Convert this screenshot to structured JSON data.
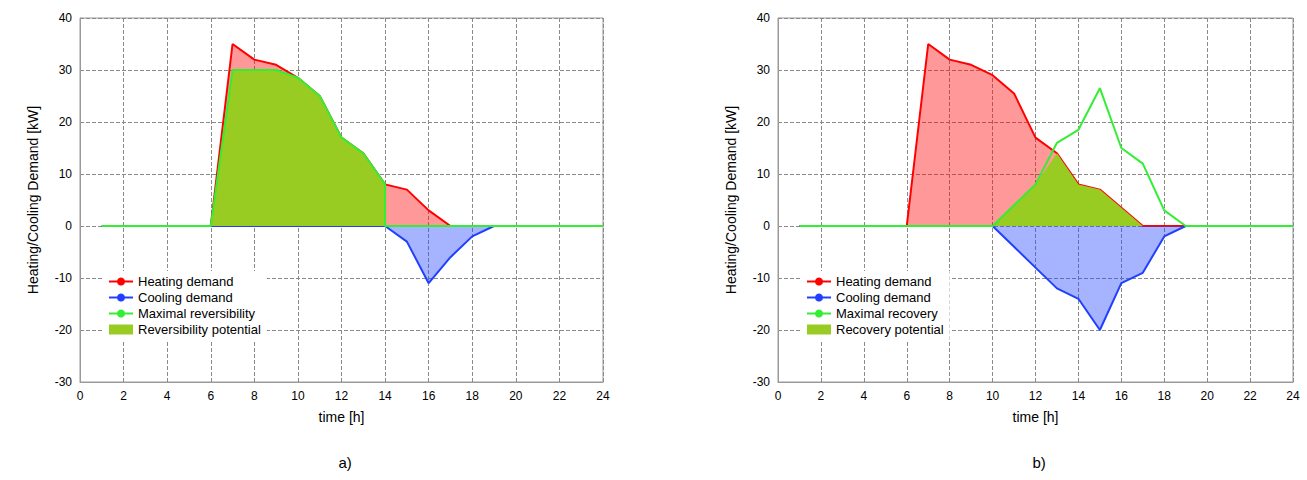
{
  "chart_data": [
    {
      "type": "line",
      "title": "a)",
      "x_label": "time [h]",
      "y_label": "Heating/Cooling Demand [kW]",
      "x": [
        1,
        2,
        3,
        4,
        5,
        6,
        7,
        8,
        9,
        10,
        11,
        12,
        13,
        14,
        14,
        15,
        16,
        17,
        18,
        19,
        20,
        21,
        22,
        23,
        24
      ],
      "series": [
        {
          "name": "Heating demand",
          "type": "area",
          "color": "#ff0000",
          "values": [
            0,
            0,
            0,
            0,
            0,
            0,
            35,
            32,
            31,
            28.5,
            25,
            17,
            14,
            8,
            8,
            7,
            3,
            0,
            0,
            0,
            0,
            0,
            0,
            0,
            0
          ]
        },
        {
          "name": "Cooling demand",
          "type": "area",
          "color": "#2040ff",
          "values": [
            0,
            0,
            0,
            0,
            0,
            0,
            0,
            0,
            0,
            0,
            0,
            0,
            0,
            0,
            0,
            -3,
            -11,
            -6,
            -2,
            0,
            0,
            0,
            0,
            0,
            0
          ]
        },
        {
          "name": "Reversibility potential",
          "type": "area",
          "line_style": "none",
          "color": "#99cc22",
          "values": [
            0,
            0,
            0,
            0,
            0,
            0,
            30,
            30,
            30,
            28.5,
            25,
            17,
            14,
            8,
            0,
            0,
            0,
            0,
            0,
            0,
            0,
            0,
            0,
            0,
            0
          ]
        },
        {
          "name": "Maximal reversibility",
          "type": "line",
          "color": "#33ee33",
          "values": [
            0,
            0,
            0,
            0,
            0,
            0,
            30,
            30,
            30,
            28.5,
            25,
            17,
            14,
            8,
            0,
            0,
            0,
            0,
            0,
            0,
            0,
            0,
            0,
            0,
            0
          ]
        }
      ],
      "legend_order": [
        "Heating demand",
        "Cooling demand",
        "Maximal reversibility",
        "Reversibility potential"
      ],
      "xlim": [
        0,
        24
      ],
      "xticks": [
        0,
        2,
        4,
        6,
        8,
        10,
        12,
        14,
        16,
        18,
        20,
        22,
        24
      ],
      "ylim": [
        -30,
        40
      ],
      "yticks": [
        -30,
        -20,
        -10,
        0,
        10,
        20,
        30,
        40
      ],
      "grid": true,
      "legend": "lower left"
    },
    {
      "type": "line",
      "title": "b)",
      "x_label": "time [h]",
      "y_label": "Heating/Cooling Demand [kW]",
      "x": [
        1,
        2,
        3,
        4,
        5,
        6,
        7,
        8,
        9,
        10,
        11,
        12,
        13,
        14,
        15,
        16,
        17,
        18,
        19,
        20,
        21,
        22,
        23,
        24
      ],
      "series": [
        {
          "name": "Heating demand",
          "type": "area",
          "color": "#ff0000",
          "values": [
            0,
            0,
            0,
            0,
            0,
            0,
            35,
            32,
            31,
            29,
            25.5,
            17,
            14,
            8,
            7,
            3.5,
            0,
            0,
            0,
            0,
            0,
            0,
            0,
            0
          ]
        },
        {
          "name": "Cooling demand",
          "type": "area",
          "color": "#2040ff",
          "values": [
            0,
            0,
            0,
            0,
            0,
            0,
            0,
            0,
            0,
            0,
            -4,
            -8,
            -12,
            -14,
            -20,
            -11,
            -9,
            -2,
            0,
            0,
            0,
            0,
            0,
            0
          ]
        },
        {
          "name": "Recovery potential",
          "type": "area",
          "line_style": "none",
          "color": "#99cc22",
          "values": [
            0,
            0,
            0,
            0,
            0,
            0,
            0,
            0,
            0,
            0,
            4,
            8,
            14,
            8,
            7,
            3.5,
            0,
            0,
            0,
            0,
            0,
            0,
            0,
            0
          ]
        },
        {
          "name": "Maximal recovery",
          "type": "line",
          "color": "#33ee33",
          "values": [
            0,
            0,
            0,
            0,
            0,
            0,
            0,
            0,
            0,
            0,
            4,
            8,
            16,
            18.5,
            26.5,
            15,
            12,
            3,
            0,
            0,
            0,
            0,
            0,
            0
          ]
        }
      ],
      "legend_order": [
        "Heating demand",
        "Cooling demand",
        "Maximal recovery",
        "Recovery potential"
      ],
      "xlim": [
        0,
        24
      ],
      "xticks": [
        0,
        2,
        4,
        6,
        8,
        10,
        12,
        14,
        16,
        18,
        20,
        22,
        24
      ],
      "ylim": [
        -30,
        40
      ],
      "yticks": [
        -30,
        -20,
        -10,
        0,
        10,
        20,
        30,
        40
      ],
      "grid": true,
      "legend": "lower left"
    }
  ]
}
